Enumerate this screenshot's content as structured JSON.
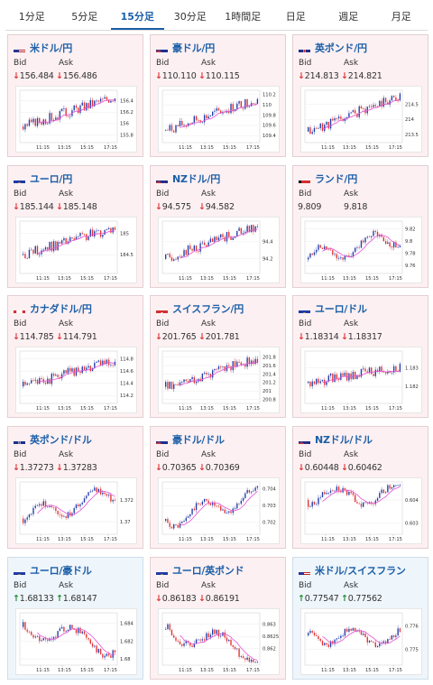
{
  "tabs": [
    {
      "label": "1分足",
      "active": false
    },
    {
      "label": "5分足",
      "active": false
    },
    {
      "label": "15分足",
      "active": true
    },
    {
      "label": "30分足",
      "active": false
    },
    {
      "label": "1時間足",
      "active": false
    },
    {
      "label": "日足",
      "active": false
    },
    {
      "label": "週足",
      "active": false
    },
    {
      "label": "月足",
      "active": false
    }
  ],
  "bid_label": "Bid",
  "ask_label": "Ask",
  "x_ticks": [
    "11:15",
    "13:15",
    "15:15",
    "17:15"
  ],
  "colors": {
    "up_candle": "#1f3aa8",
    "down_candle": "#e03131",
    "moving_average": "#e64fd6",
    "link": "#1c5fa8"
  },
  "cards": [
    {
      "pair": "米ドル/円",
      "flag": "us-flag",
      "direction": "down",
      "bid": "156.484",
      "ask": "156.486",
      "bg": "pink",
      "ticks": [
        "156.4",
        "156.2",
        "156",
        "155.8"
      ],
      "ylim": [
        155.7,
        156.55
      ],
      "seed": 3,
      "trend": "up",
      "start": 155.95,
      "end": 156.48
    },
    {
      "pair": "豪ドル/円",
      "flag": "au-flag",
      "direction": "down",
      "bid": "110.110",
      "ask": "110.115",
      "bg": "pink",
      "ticks": [
        "110.2",
        "110",
        "109.8",
        "109.6",
        "109.4"
      ],
      "ylim": [
        109.3,
        110.25
      ],
      "seed": 7,
      "trend": "up",
      "start": 109.5,
      "end": 110.12
    },
    {
      "pair": "英ポンド/円",
      "flag": "uk-flag",
      "direction": "down",
      "bid": "214.813",
      "ask": "214.821",
      "bg": "pink",
      "ticks": [
        "214.5",
        "214",
        "213.5"
      ],
      "ylim": [
        213.3,
        214.9
      ],
      "seed": 11,
      "trend": "up",
      "start": 213.6,
      "end": 214.8
    },
    {
      "pair": "ユーロ/円",
      "flag": "eu-flag",
      "direction": "down",
      "bid": "185.144",
      "ask": "185.148",
      "bg": "pink",
      "ticks": [
        "185",
        "184.5"
      ],
      "ylim": [
        184.1,
        185.25
      ],
      "seed": 13,
      "trend": "up",
      "start": 184.5,
      "end": 185.14
    },
    {
      "pair": "NZドル/円",
      "flag": "nz-flag",
      "direction": "down",
      "bid": "94.575",
      "ask": "94.582",
      "bg": "pink",
      "ticks": [
        "94.4",
        "94.2"
      ],
      "ylim": [
        94.05,
        94.62
      ],
      "seed": 17,
      "trend": "up",
      "start": 94.2,
      "end": 94.58
    },
    {
      "pair": "ランド/円",
      "flag": "za-flag",
      "direction": "none",
      "bid": "9.809",
      "ask": "9.818",
      "bg": "pink",
      "ticks": [
        "9.82",
        "9.8",
        "9.78",
        "9.76"
      ],
      "ylim": [
        9.75,
        9.83
      ],
      "seed": 19,
      "trend": "flat",
      "start": 9.77,
      "end": 9.81
    },
    {
      "pair": "カナダドル/円",
      "flag": "ca-flag",
      "direction": "down",
      "bid": "114.785",
      "ask": "114.791",
      "bg": "pink",
      "ticks": [
        "114.8",
        "114.6",
        "114.4",
        "114.2"
      ],
      "ylim": [
        114.1,
        114.9
      ],
      "seed": 23,
      "trend": "up",
      "start": 114.35,
      "end": 114.79
    },
    {
      "pair": "スイスフラン/円",
      "flag": "ch-flag",
      "direction": "down",
      "bid": "201.765",
      "ask": "201.781",
      "bg": "pink",
      "ticks": [
        "201.8",
        "201.6",
        "201.4",
        "201.2",
        "201",
        "200.8"
      ],
      "ylim": [
        200.75,
        201.9
      ],
      "seed": 29,
      "trend": "up",
      "start": 201.1,
      "end": 201.77
    },
    {
      "pair": "ユーロ/ドル",
      "flag": "eu-flag",
      "direction": "down",
      "bid": "1.18314",
      "ask": "1.18317",
      "bg": "pink",
      "ticks": [
        "1.183",
        "1.182"
      ],
      "ylim": [
        1.1812,
        1.1838
      ],
      "seed": 31,
      "trend": "up",
      "start": 1.1822,
      "end": 1.1831
    },
    {
      "pair": "英ポンド/ドル",
      "flag": "uk-flag",
      "direction": "down",
      "bid": "1.37273",
      "ask": "1.37283",
      "bg": "pink",
      "ticks": [
        "1.372",
        "1.37"
      ],
      "ylim": [
        1.369,
        1.3735
      ],
      "seed": 37,
      "trend": "flat",
      "start": 1.3703,
      "end": 1.3727
    },
    {
      "pair": "豪ドル/ドル",
      "flag": "au-flag",
      "direction": "down",
      "bid": "0.70365",
      "ask": "0.70369",
      "bg": "pink",
      "ticks": [
        "0.704",
        "0.703",
        "0.702"
      ],
      "ylim": [
        0.7014,
        0.7043
      ],
      "seed": 41,
      "trend": "flat",
      "start": 0.7021,
      "end": 0.7036
    },
    {
      "pair": "NZドル/ドル",
      "flag": "nz-flag",
      "direction": "down",
      "bid": "0.60448",
      "ask": "0.60462",
      "bg": "pink",
      "ticks": [
        "0.604",
        "0.603"
      ],
      "ylim": [
        0.6026,
        0.6047
      ],
      "seed": 43,
      "trend": "down",
      "start": 0.604,
      "end": 0.6044
    },
    {
      "pair": "ユーロ/豪ドル",
      "flag": "eu-flag",
      "direction": "up",
      "bid": "1.68133",
      "ask": "1.68147",
      "bg": "blue",
      "ticks": [
        "1.684",
        "1.682",
        "1.68"
      ],
      "ylim": [
        1.6795,
        1.685
      ],
      "seed": 47,
      "trend": "down",
      "start": 1.6836,
      "end": 1.6813
    },
    {
      "pair": "ユーロ/英ポンド",
      "flag": "eu-flag",
      "direction": "down",
      "bid": "0.86183",
      "ask": "0.86191",
      "bg": "pink",
      "ticks": [
        "0.863",
        "0.8625",
        "0.862"
      ],
      "ylim": [
        0.8614,
        0.8634
      ],
      "seed": 53,
      "trend": "down",
      "start": 0.8628,
      "end": 0.8618
    },
    {
      "pair": "米ドル/スイスフラン",
      "flag": "us-flag",
      "direction": "up",
      "bid": "0.77547",
      "ask": "0.77562",
      "bg": "blue",
      "ticks": [
        "0.776",
        "0.775"
      ],
      "ylim": [
        0.7744,
        0.7765
      ],
      "seed": 59,
      "trend": "flat",
      "start": 0.7756,
      "end": 0.7755
    }
  ]
}
